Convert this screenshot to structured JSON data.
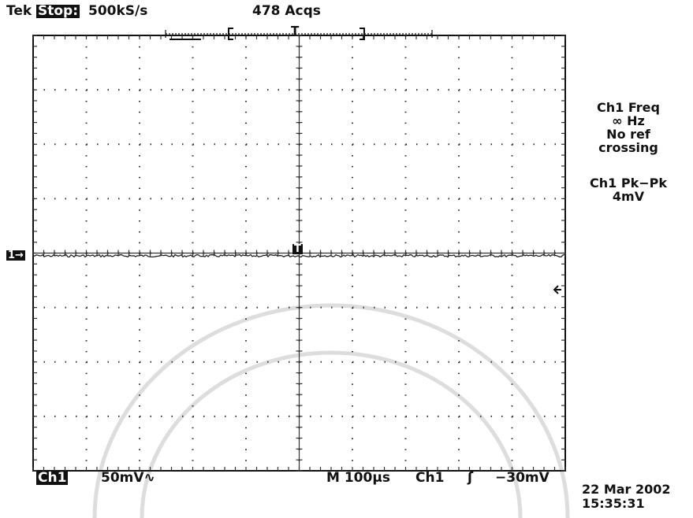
{
  "header": {
    "brand": "Tek",
    "state": "Stop:",
    "sample_rate": "500kS/s",
    "acquisitions": "478 Acqs",
    "trigger_marker": "T"
  },
  "measurements": [
    {
      "label": "Ch1 Freq",
      "lines": [
        "∞ Hz",
        "No ref",
        "crossing"
      ]
    },
    {
      "label": "Ch1 Pk−Pk",
      "lines": [
        "4mV"
      ]
    }
  ],
  "screen": {
    "channel_marker": "1→",
    "trigger_position": "T"
  },
  "footer": {
    "channel": "Ch1",
    "scale": "50mV∿",
    "timebase": "M 100µs",
    "trigger_source": "Ch1",
    "trigger_slope": "ʃ",
    "trigger_level": "−30mV"
  },
  "timestamp": {
    "date": "22 Mar 2002",
    "time": "15:35:31"
  }
}
